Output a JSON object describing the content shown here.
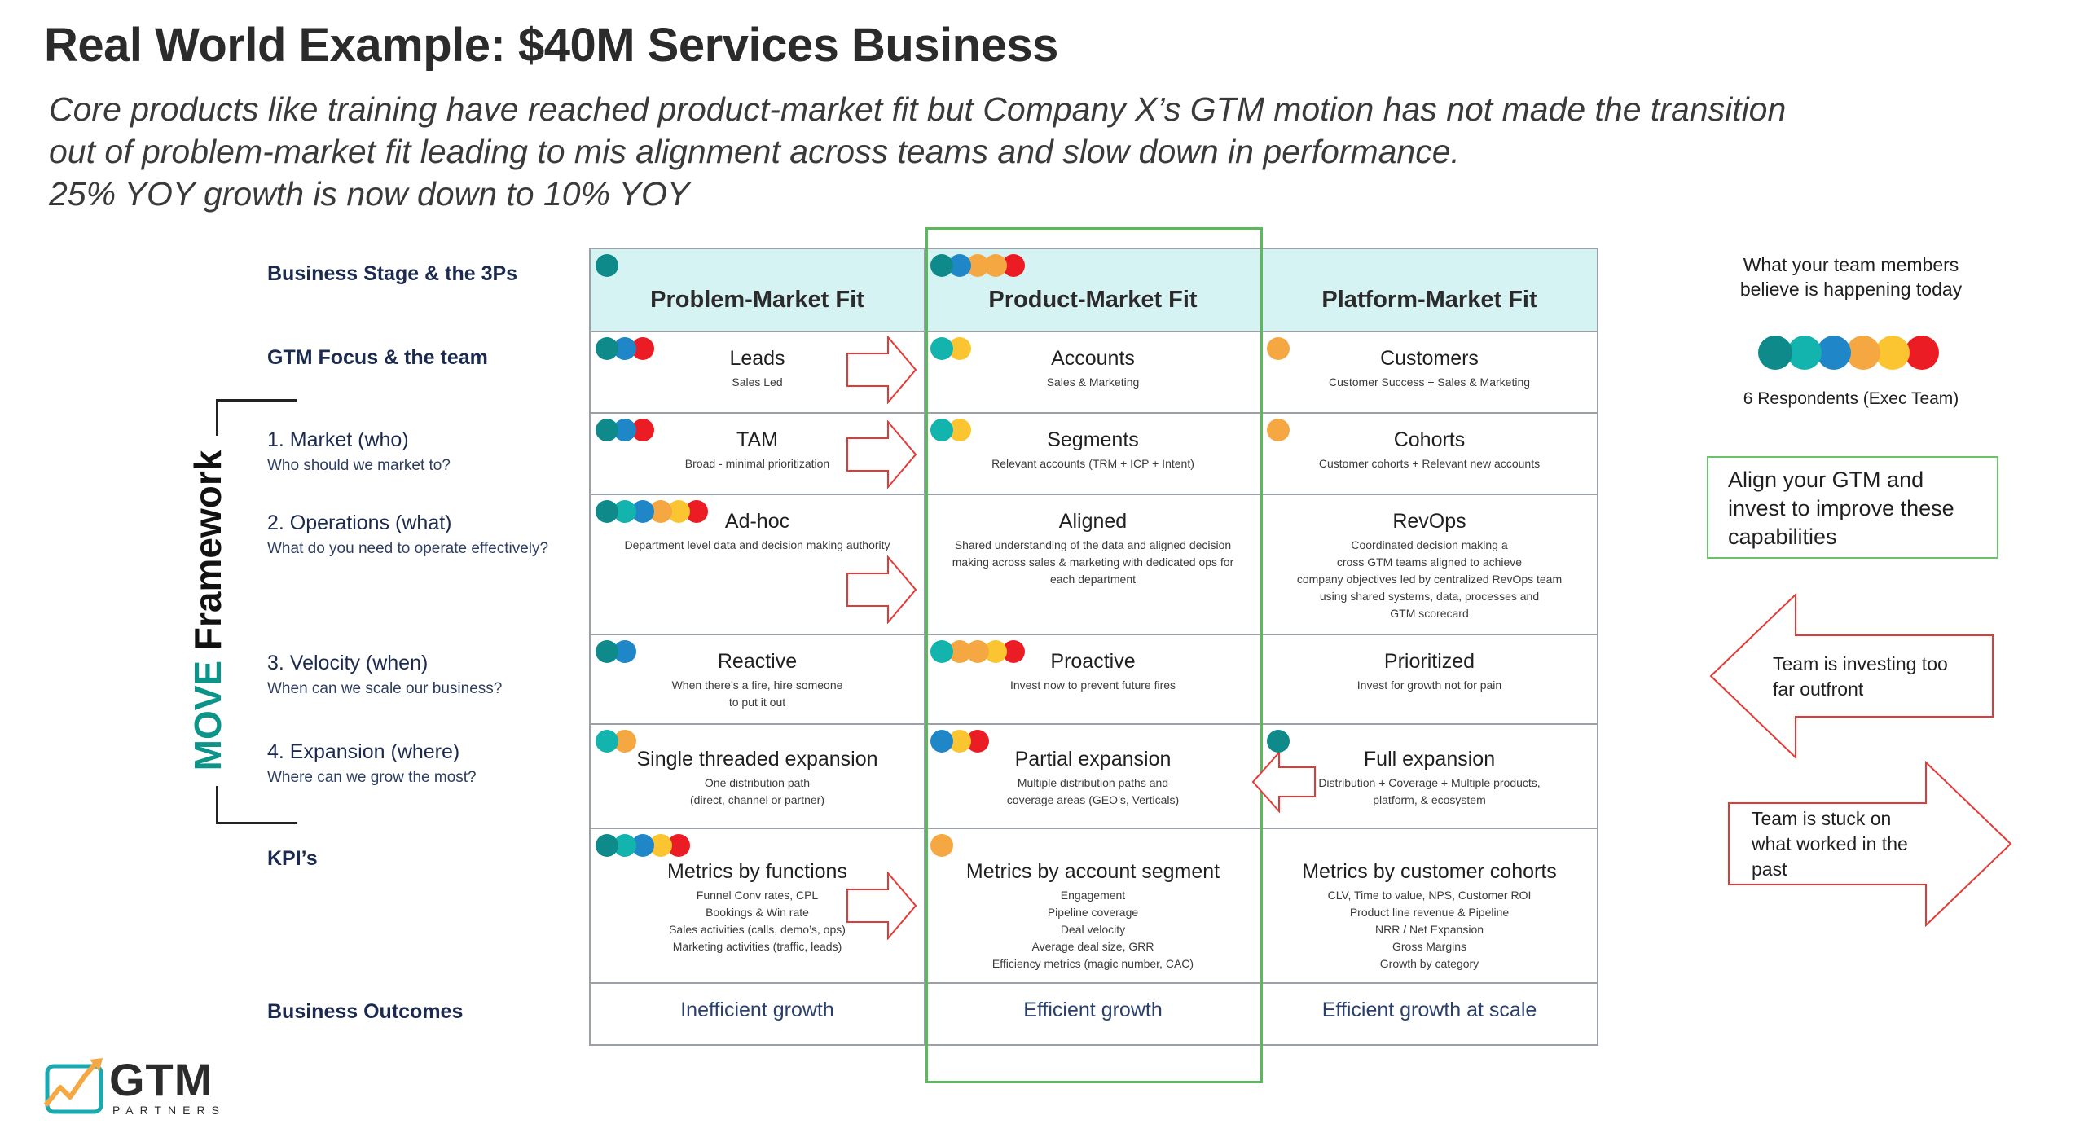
{
  "title": "Real World Example: $40M Services Business",
  "subtitle": [
    "Core products like training have reached product-market fit but Company X’s GTM motion has not made the transition",
    "out of problem-market fit leading to mis alignment across teams and slow down in performance.",
    "25% YOY growth is now down to 10% YOY"
  ],
  "colors": {
    "dark_teal": "#0e8a8a",
    "teal": "#13b3ae",
    "blue": "#1f87c8",
    "orange": "#f5a742",
    "yellow": "#fbc531",
    "red": "#ec1c24"
  },
  "framework": {
    "label_move": "MOVE",
    "label_framework": " Framework"
  },
  "rows": {
    "stage": {
      "label": "Business Stage & the 3Ps"
    },
    "gtm": {
      "label": "GTM Focus & the team"
    },
    "market": {
      "label": "1. Market (who)",
      "sub": "Who should we market to?"
    },
    "operations": {
      "label": "2. Operations (what)",
      "sub": "What do you need to operate effectively?"
    },
    "velocity": {
      "label": "3. Velocity (when)",
      "sub": "When can we scale our business?"
    },
    "expansion": {
      "label": "4. Expansion (where)",
      "sub": "Where can we grow the most?"
    },
    "kpi": {
      "label": "KPI’s"
    },
    "outcomes": {
      "label": "Business Outcomes"
    }
  },
  "columns": [
    {
      "header": "Problem-Market Fit",
      "header_dots": [
        "dark_teal"
      ],
      "gtm": {
        "title": "Leads",
        "sub": "Sales Led",
        "dots": [
          "dark_teal",
          "blue",
          "red"
        ]
      },
      "market": {
        "title": "TAM",
        "sub": "Broad - minimal prioritization",
        "dots": [
          "dark_teal",
          "blue",
          "red"
        ]
      },
      "operations": {
        "title": "Ad-hoc",
        "sub": [
          "Department level data and decision making authority"
        ],
        "dots": [
          "dark_teal",
          "teal",
          "blue",
          "orange",
          "yellow",
          "red"
        ]
      },
      "velocity": {
        "title": "Reactive",
        "sub": [
          "When there’s a fire, hire someone",
          "to put it out"
        ],
        "dots": [
          "dark_teal",
          "blue"
        ]
      },
      "expansion": {
        "title": "Single threaded expansion",
        "sub": [
          "One distribution path",
          "(direct, channel or partner)"
        ],
        "dots": [
          "teal",
          "orange"
        ]
      },
      "kpi": {
        "title": "Metrics by functions",
        "sub": [
          "Funnel Conv rates, CPL",
          "Bookings & Win rate",
          "Sales activities (calls, demo’s, ops)",
          "Marketing activities (traffic, leads)"
        ],
        "dots": [
          "dark_teal",
          "teal",
          "blue",
          "yellow",
          "red"
        ]
      },
      "outcome": "Inefficient growth"
    },
    {
      "header": "Product-Market Fit",
      "header_dots": [
        "dark_teal",
        "blue",
        "orange",
        "orange",
        "red"
      ],
      "gtm": {
        "title": "Accounts",
        "sub": "Sales & Marketing",
        "dots": [
          "teal",
          "yellow"
        ]
      },
      "market": {
        "title": "Segments",
        "sub": "Relevant accounts (TRM + ICP + Intent)",
        "dots": [
          "teal",
          "yellow"
        ]
      },
      "operations": {
        "title": "Aligned",
        "sub": [
          "Shared understanding of the data and aligned decision",
          "making across sales & marketing with dedicated ops for",
          "each department"
        ],
        "dots": []
      },
      "velocity": {
        "title": "Proactive",
        "sub": [
          "Invest now to prevent future fires"
        ],
        "dots": [
          "teal",
          "orange",
          "orange",
          "yellow",
          "red"
        ]
      },
      "expansion": {
        "title": "Partial expansion",
        "sub": [
          "Multiple distribution paths and",
          "coverage areas (GEO’s, Verticals)"
        ],
        "dots": [
          "blue",
          "yellow",
          "red"
        ]
      },
      "kpi": {
        "title": "Metrics by account segment",
        "sub": [
          "Engagement",
          "Pipeline coverage",
          "Deal velocity",
          "Average deal size, GRR",
          "Efficiency metrics (magic number, CAC)"
        ],
        "dots": [
          "orange"
        ]
      },
      "outcome": "Efficient growth"
    },
    {
      "header": "Platform-Market Fit",
      "header_dots": [],
      "gtm": {
        "title": "Customers",
        "sub": "Customer Success + Sales & Marketing",
        "dots": [
          "orange"
        ]
      },
      "market": {
        "title": "Cohorts",
        "sub": "Customer cohorts + Relevant new accounts",
        "dots": [
          "orange"
        ]
      },
      "operations": {
        "title": "RevOps",
        "sub": [
          "Coordinated decision making a",
          "cross GTM teams aligned to achieve",
          "company objectives led by centralized RevOps team",
          "using shared systems, data, processes and",
          "GTM scorecard"
        ],
        "dots": []
      },
      "velocity": {
        "title": "Prioritized",
        "sub": [
          "Invest for growth not for pain"
        ],
        "dots": []
      },
      "expansion": {
        "title": "Full expansion",
        "sub": [
          "Distribution + Coverage + Multiple products,",
          "platform, & ecosystem"
        ],
        "dots": [
          "dark_teal"
        ]
      },
      "kpi": {
        "title": "Metrics by customer cohorts",
        "sub": [
          "CLV, Time to value, NPS, Customer ROI",
          "Product line revenue & Pipeline",
          "NRR / Net Expansion",
          "Gross Margins",
          "Growth by category"
        ],
        "dots": []
      },
      "outcome": "Efficient growth at scale"
    }
  ],
  "right_panel": {
    "believe_line1": "What your team members",
    "believe_line2": "believe is happening today",
    "respondent_dots": [
      "dark_teal",
      "teal",
      "blue",
      "orange",
      "yellow",
      "red"
    ],
    "respondents": "6 Respondents (Exec Team)",
    "align_text": "Align your GTM and invest to improve these capabilities",
    "outfront_text": "Team is investing too far outfront",
    "stuck_text": "Team is stuck on what worked in the past"
  },
  "logo": {
    "text": "GTM",
    "sub": "PARTNERS"
  }
}
